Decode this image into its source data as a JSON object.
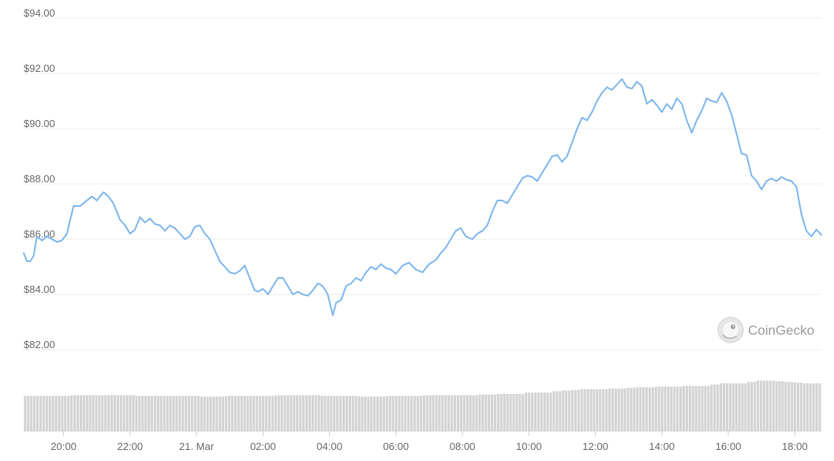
{
  "chart_data": {
    "type": "line",
    "watermark": "CoinGecko",
    "y_axis": {
      "ylim": [
        81.5,
        94.3
      ],
      "ticks": [
        82,
        84,
        86,
        88,
        90,
        92,
        94
      ],
      "tick_labels": [
        "$82.00",
        "$84.00",
        "$86.00",
        "$88.00",
        "$90.00",
        "$92.00",
        "$94.00"
      ]
    },
    "x_axis": {
      "range_hours": [
        18.8,
        42.8
      ],
      "ticks": [
        20,
        22,
        24,
        26,
        28,
        30,
        32,
        34,
        36,
        38,
        40,
        42
      ],
      "tick_labels": [
        "20:00",
        "22:00",
        "21. Mar",
        "02:00",
        "04:00",
        "06:00",
        "08:00",
        "10:00",
        "12:00",
        "14:00",
        "16:00",
        "18:00"
      ]
    },
    "price_series": {
      "x_hours": [
        18.8,
        18.9,
        19.0,
        19.1,
        19.2,
        19.35,
        19.5,
        19.65,
        19.8,
        19.95,
        20.1,
        20.3,
        20.5,
        20.7,
        20.85,
        21.0,
        21.2,
        21.35,
        21.5,
        21.7,
        21.85,
        22.0,
        22.15,
        22.3,
        22.45,
        22.6,
        22.75,
        22.9,
        23.05,
        23.2,
        23.35,
        23.5,
        23.65,
        23.8,
        23.95,
        24.1,
        24.25,
        24.4,
        24.55,
        24.7,
        24.85,
        25.0,
        25.15,
        25.3,
        25.45,
        25.6,
        25.75,
        25.85,
        26.0,
        26.15,
        26.3,
        26.45,
        26.6,
        26.75,
        26.9,
        27.05,
        27.2,
        27.35,
        27.5,
        27.65,
        27.8,
        27.95,
        28.1,
        28.2,
        28.35,
        28.5,
        28.65,
        28.8,
        28.95,
        29.1,
        29.25,
        29.4,
        29.55,
        29.7,
        29.85,
        30.0,
        30.2,
        30.4,
        30.6,
        30.8,
        31.0,
        31.2,
        31.35,
        31.5,
        31.65,
        31.8,
        31.95,
        32.1,
        32.3,
        32.45,
        32.6,
        32.75,
        32.9,
        33.05,
        33.2,
        33.35,
        33.5,
        33.65,
        33.8,
        33.95,
        34.1,
        34.25,
        34.4,
        34.55,
        34.7,
        34.85,
        35.0,
        35.15,
        35.3,
        35.45,
        35.6,
        35.75,
        35.9,
        36.05,
        36.2,
        36.35,
        36.5,
        36.65,
        36.8,
        36.95,
        37.1,
        37.25,
        37.4,
        37.55,
        37.7,
        37.85,
        38.0,
        38.15,
        38.3,
        38.45,
        38.6,
        38.75,
        38.9,
        39.05,
        39.2,
        39.35,
        39.5,
        39.65,
        39.8,
        39.95,
        40.1,
        40.25,
        40.4,
        40.55,
        40.7,
        40.85,
        41.0,
        41.15,
        41.3,
        41.45,
        41.6,
        41.75,
        41.9,
        42.05,
        42.2,
        42.35,
        42.5,
        42.65,
        42.8
      ],
      "prices": [
        85.5,
        85.2,
        85.2,
        85.4,
        86.1,
        85.95,
        86.1,
        86.0,
        85.9,
        85.95,
        86.2,
        87.2,
        87.2,
        87.4,
        87.55,
        87.4,
        87.7,
        87.55,
        87.3,
        86.7,
        86.5,
        86.2,
        86.35,
        86.8,
        86.6,
        86.75,
        86.55,
        86.5,
        86.3,
        86.5,
        86.4,
        86.2,
        86.0,
        86.1,
        86.45,
        86.5,
        86.2,
        86.0,
        85.6,
        85.2,
        85.0,
        84.8,
        84.75,
        84.85,
        85.05,
        84.6,
        84.15,
        84.1,
        84.2,
        84.0,
        84.3,
        84.6,
        84.6,
        84.3,
        84.0,
        84.1,
        84.0,
        83.95,
        84.15,
        84.4,
        84.3,
        84.0,
        83.25,
        83.7,
        83.8,
        84.3,
        84.4,
        84.6,
        84.5,
        84.8,
        85.0,
        84.9,
        85.1,
        84.95,
        84.9,
        84.75,
        85.05,
        85.15,
        84.9,
        84.8,
        85.1,
        85.25,
        85.5,
        85.7,
        86.0,
        86.3,
        86.4,
        86.1,
        86.0,
        86.2,
        86.3,
        86.5,
        87.0,
        87.4,
        87.4,
        87.3,
        87.6,
        87.9,
        88.2,
        88.3,
        88.25,
        88.1,
        88.4,
        88.7,
        89.0,
        89.05,
        88.8,
        89.0,
        89.5,
        90.0,
        90.4,
        90.3,
        90.6,
        91.0,
        91.3,
        91.5,
        91.4,
        91.6,
        91.8,
        91.5,
        91.45,
        91.7,
        91.55,
        90.9,
        91.05,
        90.85,
        90.6,
        90.9,
        90.7,
        91.1,
        90.9,
        90.3,
        89.85,
        90.3,
        90.65,
        91.1,
        91.0,
        90.95,
        91.3,
        91.0,
        90.5,
        89.8,
        89.1,
        89.05,
        88.3,
        88.1,
        87.8,
        88.1,
        88.2,
        88.1,
        88.25,
        88.15,
        88.1,
        87.9,
        86.9,
        86.3,
        86.1,
        86.35,
        86.15
      ]
    },
    "volume_series": {
      "x_range_hours": [
        18.8,
        42.8
      ],
      "relative_levels": [
        0.53,
        0.53,
        0.53,
        0.53,
        0.53,
        0.54,
        0.54,
        0.54,
        0.54,
        0.54,
        0.54,
        0.54,
        0.53,
        0.53,
        0.53,
        0.53,
        0.53,
        0.53,
        0.53,
        0.52,
        0.52,
        0.52,
        0.53,
        0.53,
        0.53,
        0.53,
        0.53,
        0.54,
        0.54,
        0.54,
        0.54,
        0.54,
        0.53,
        0.53,
        0.53,
        0.53,
        0.52,
        0.52,
        0.52,
        0.53,
        0.53,
        0.53,
        0.53,
        0.54,
        0.54,
        0.54,
        0.54,
        0.54,
        0.54,
        0.55,
        0.55,
        0.56,
        0.56,
        0.56,
        0.58,
        0.58,
        0.58,
        0.6,
        0.61,
        0.62,
        0.63,
        0.63,
        0.63,
        0.64,
        0.64,
        0.65,
        0.66,
        0.66,
        0.67,
        0.67,
        0.67,
        0.68,
        0.68,
        0.68,
        0.7,
        0.72,
        0.72,
        0.72,
        0.74,
        0.76,
        0.76,
        0.75,
        0.74,
        0.73,
        0.72,
        0.72
      ]
    }
  }
}
